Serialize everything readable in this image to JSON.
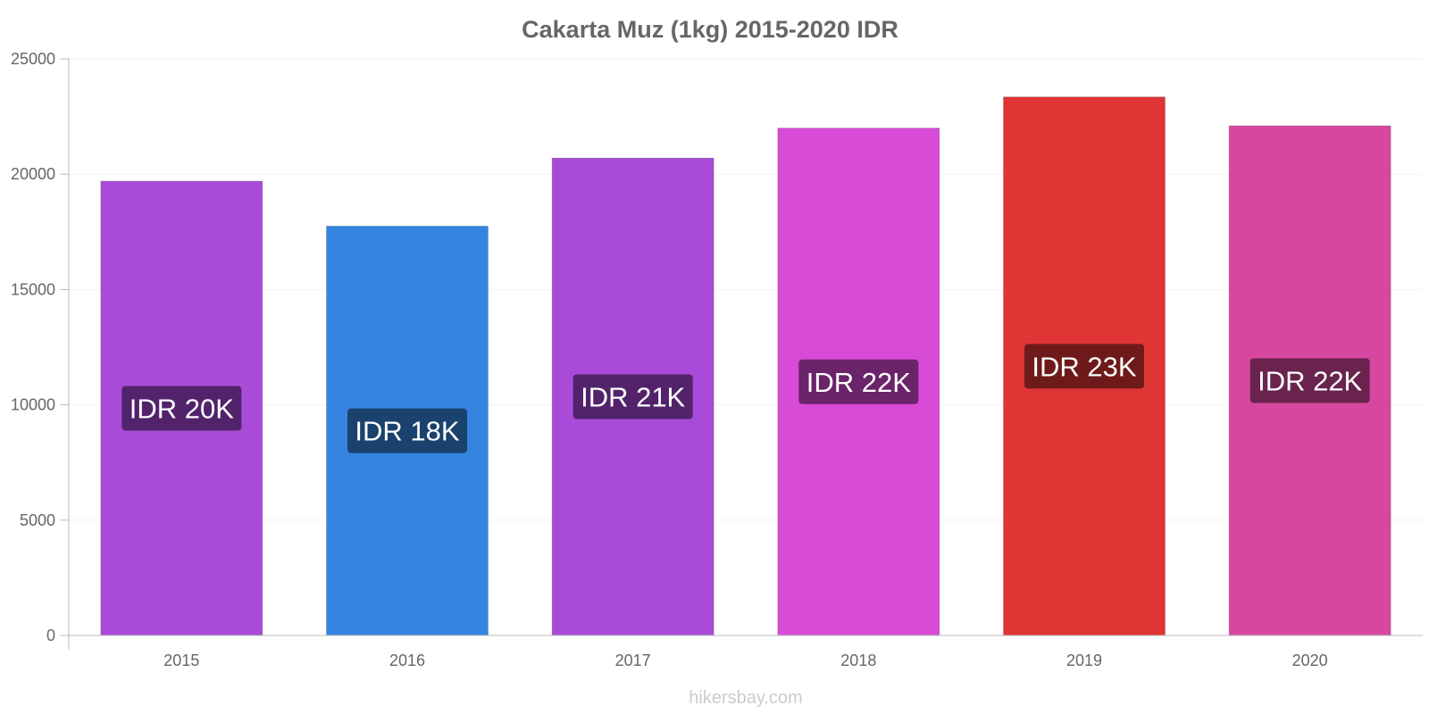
{
  "chart_data": {
    "type": "bar",
    "title": "Cakarta Muz (1kg) 2015-2020 IDR",
    "xlabel": "",
    "ylabel": "",
    "categories": [
      "2015",
      "2016",
      "2017",
      "2018",
      "2019",
      "2020"
    ],
    "values": [
      19700,
      17750,
      20700,
      22000,
      23350,
      22100
    ],
    "data_labels": [
      "IDR 20K",
      "IDR 18K",
      "IDR 21K",
      "IDR 22K",
      "IDR 23K",
      "IDR 22K"
    ],
    "bar_colors": [
      "#a94bd9",
      "#3585e0",
      "#a94bd9",
      "#d84bd6",
      "#e03535",
      "#d6489f"
    ],
    "label_bg_colors": [
      "#52236b",
      "#1b426e",
      "#52236b",
      "#6b2369",
      "#6e1a1a",
      "#6a234e"
    ],
    "ylim": [
      0,
      25000
    ],
    "yticks": [
      0,
      5000,
      10000,
      15000,
      20000,
      25000
    ],
    "grid": true,
    "legend": "none"
  },
  "footer": {
    "source": "hikersbay.com"
  }
}
